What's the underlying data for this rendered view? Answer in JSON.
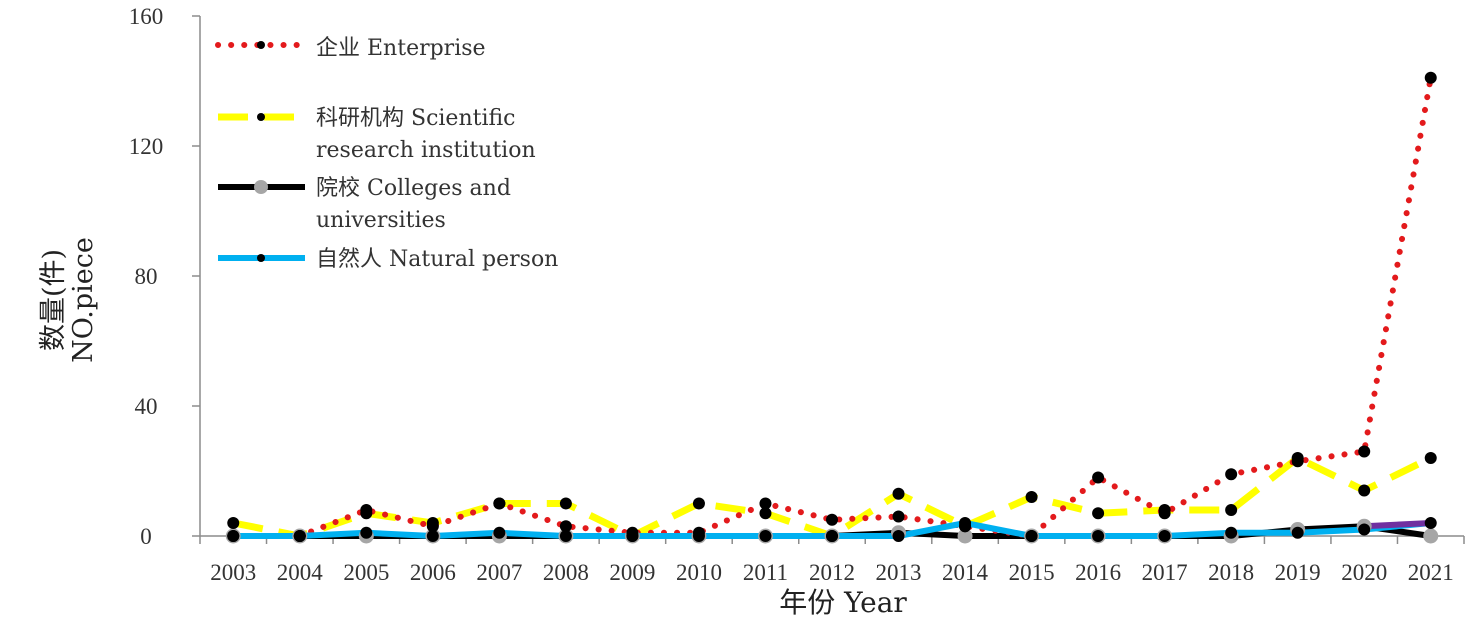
{
  "chart_data": {
    "type": "line",
    "xlabel": "年份 Year",
    "ylabel_cn": "数量(件)",
    "ylabel_en": "NO.piece",
    "ylim": [
      0,
      160
    ],
    "yticks": [
      "0",
      "40",
      "80",
      "120",
      "160"
    ],
    "grid": false,
    "legend_position": "top-left",
    "categories": [
      "2003",
      "2004",
      "2005",
      "2006",
      "2007",
      "2008",
      "2009",
      "2010",
      "2011",
      "2012",
      "2013",
      "2014",
      "2015",
      "2016",
      "2017",
      "2018",
      "2019",
      "2020",
      "2021"
    ],
    "series": [
      {
        "name": "企业 Enterprise",
        "style": "dotted",
        "color": "#e31a1c",
        "marker_color": "#000000",
        "values": [
          0,
          0,
          8,
          3,
          10,
          3,
          1,
          1,
          10,
          5,
          6,
          3,
          0,
          18,
          7,
          19,
          23,
          26,
          141
        ]
      },
      {
        "name_line1": "科研机构 Scientific",
        "name_line2": "research institution",
        "style": "dashed",
        "color": "#ffff00",
        "marker_color": "#000000",
        "values": [
          4,
          0,
          7,
          4,
          10,
          10,
          0,
          10,
          7,
          0,
          13,
          3,
          12,
          7,
          8,
          8,
          24,
          14,
          24
        ]
      },
      {
        "name_line1": "院校 Colleges and",
        "name_line2": "universities",
        "style": "solid",
        "color": "#000000",
        "marker_color": "#a6a6a6",
        "values": [
          0,
          0,
          0,
          0,
          0,
          0,
          0,
          0,
          0,
          0,
          1,
          0,
          0,
          0,
          0,
          0,
          2,
          3,
          0
        ]
      },
      {
        "name": "自然人 Natural person",
        "style": "solid",
        "color": "#00b0f0",
        "marker_color": "#000000",
        "values": [
          0,
          0,
          1,
          0,
          1,
          0,
          0,
          0,
          0,
          0,
          0,
          4,
          0,
          0,
          0,
          1,
          1,
          2,
          4
        ]
      }
    ],
    "trend_color": "#7030a0"
  }
}
